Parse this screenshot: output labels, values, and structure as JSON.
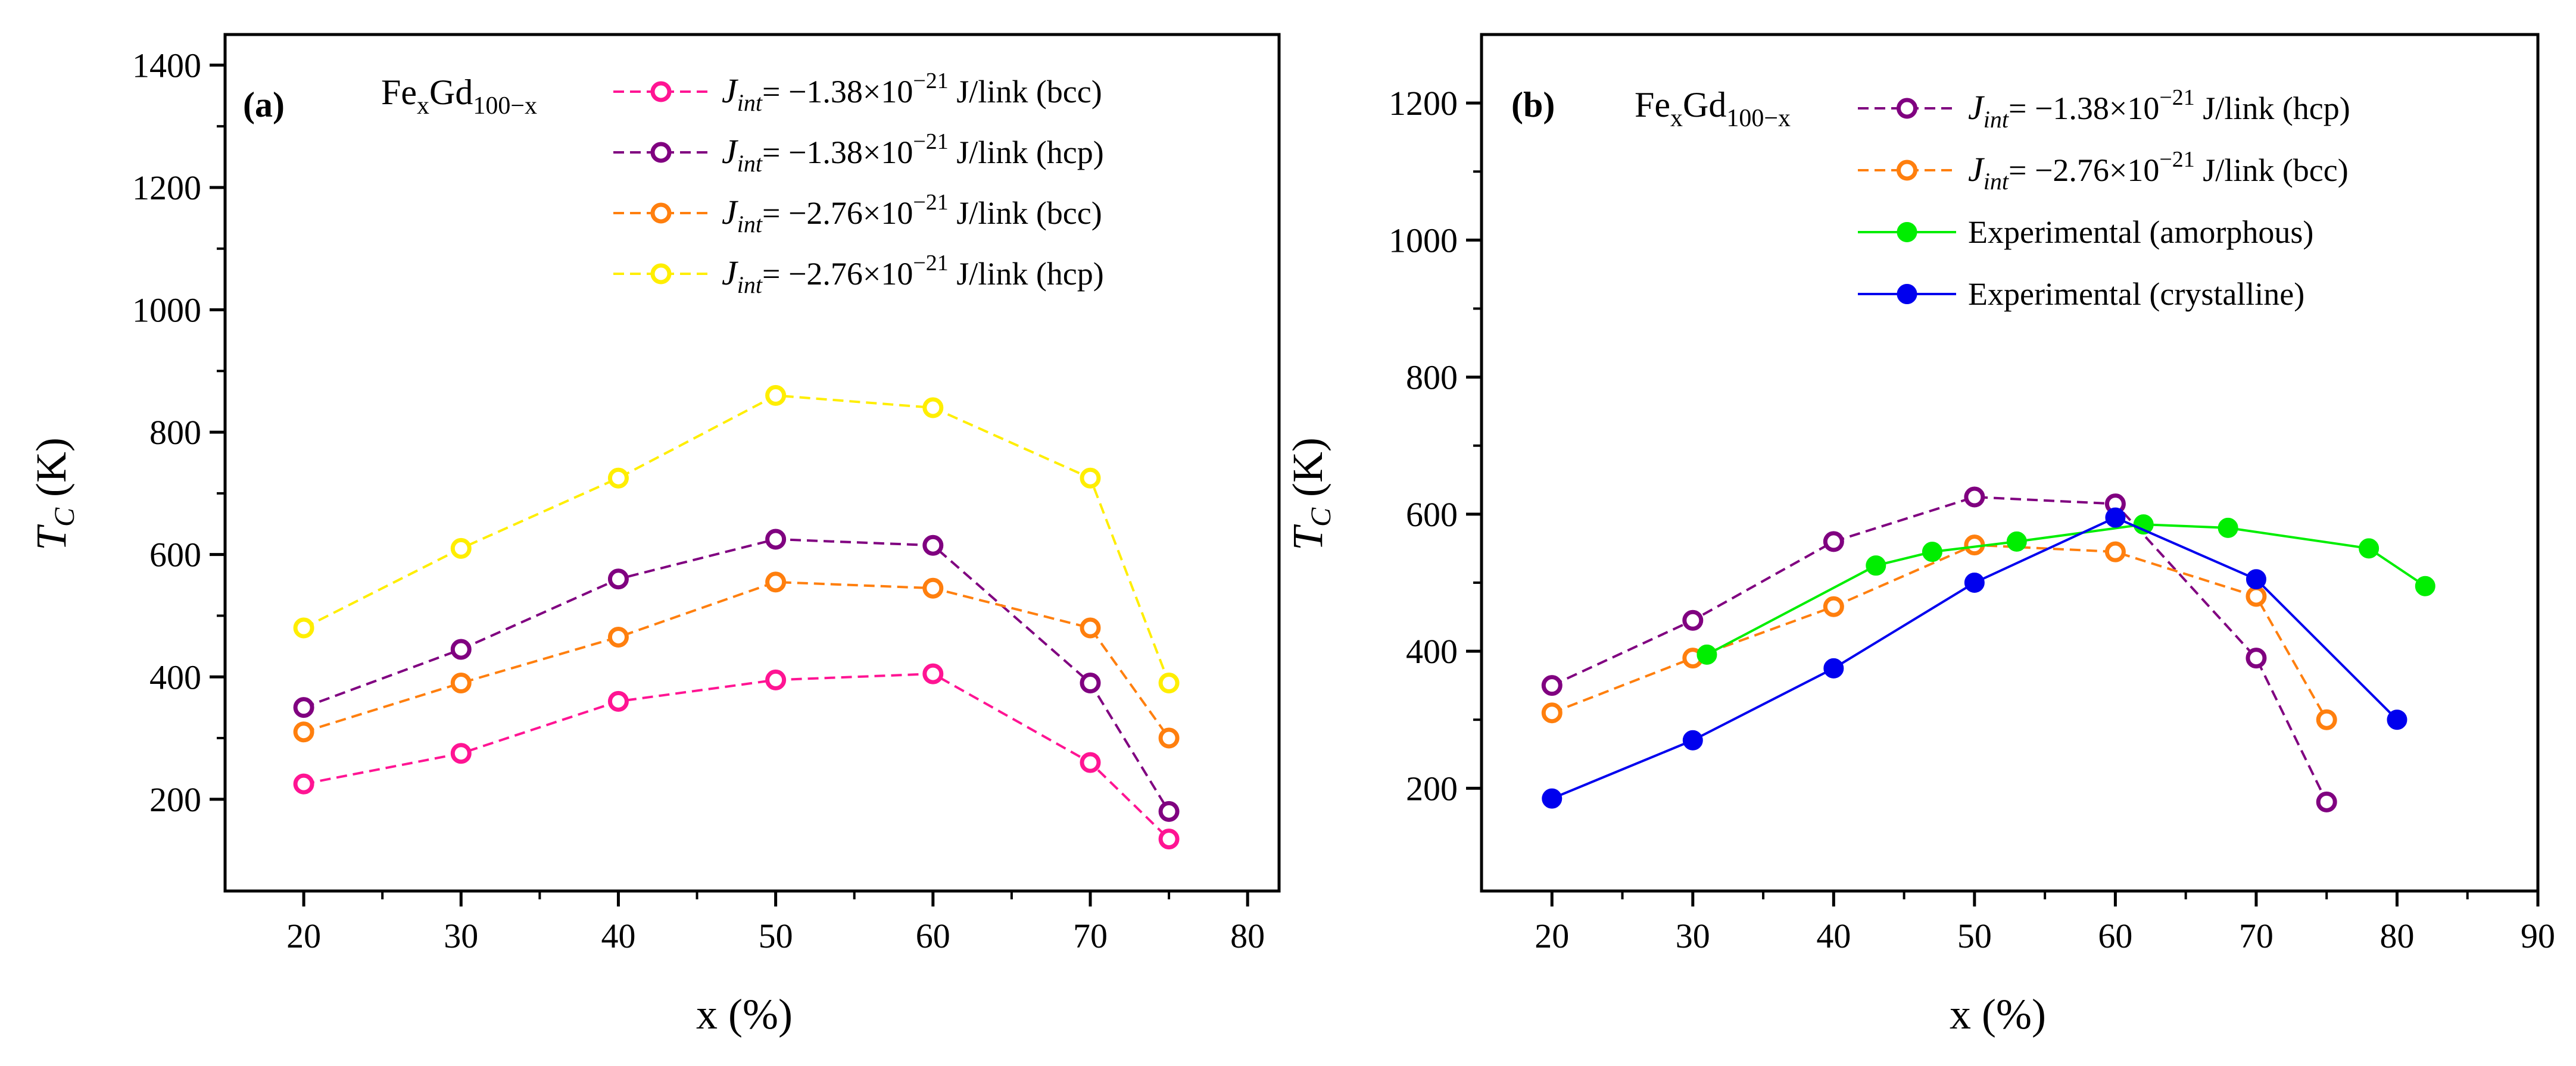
{
  "chart_data": [
    {
      "panel_label": "(a)",
      "type": "line",
      "alloy_label": {
        "base": "Fe",
        "sub1": "x",
        "mid": "Gd",
        "sub2": "100−x"
      },
      "xlabel": "x (%)",
      "ylabel": {
        "main": "T",
        "sub": "C",
        "unit": " (K)"
      },
      "xlim": [
        15,
        82
      ],
      "ylim": [
        50,
        1450
      ],
      "xticks": [
        20,
        30,
        40,
        50,
        60,
        70,
        80
      ],
      "xtick_labels": [
        "20",
        "30",
        "40",
        "50",
        "60",
        "70",
        "80"
      ],
      "yticks": [
        200,
        400,
        600,
        800,
        1000,
        1200,
        1400
      ],
      "ytick_labels": [
        "200",
        "400",
        "600",
        "800",
        "1000",
        "1200",
        "1400"
      ],
      "series": [
        {
          "name": {
            "pre": "J",
            "sub": "int",
            "mid": "= −1.38×10",
            "sup": "−21",
            "post": " J/link (bcc)"
          },
          "color": "#ff1493",
          "dashed": true,
          "filled": false,
          "x": [
            20,
            30,
            40,
            50,
            60,
            70,
            75
          ],
          "values": [
            225,
            275,
            360,
            395,
            405,
            260,
            135
          ]
        },
        {
          "name": {
            "pre": "J",
            "sub": "int",
            "mid": "= −1.38×10",
            "sup": "−21",
            "post": " J/link (hcp)"
          },
          "color": "#800080",
          "dashed": true,
          "filled": false,
          "x": [
            20,
            30,
            40,
            50,
            60,
            70,
            75
          ],
          "values": [
            350,
            445,
            560,
            625,
            615,
            390,
            180
          ]
        },
        {
          "name": {
            "pre": "J",
            "sub": "int",
            "mid": "= −2.76×10",
            "sup": "−21",
            "post": " J/link (bcc)"
          },
          "color": "#ff7f0e",
          "dashed": true,
          "filled": false,
          "x": [
            20,
            30,
            40,
            50,
            60,
            70,
            75
          ],
          "values": [
            310,
            390,
            465,
            555,
            545,
            480,
            300
          ]
        },
        {
          "name": {
            "pre": "J",
            "sub": "int",
            "mid": "= −2.76×10",
            "sup": "−21",
            "post": " J/link (hcp)"
          },
          "color": "#ffee00",
          "dashed": true,
          "filled": false,
          "x": [
            20,
            30,
            40,
            50,
            60,
            70,
            75
          ],
          "values": [
            480,
            610,
            725,
            860,
            840,
            725,
            390
          ]
        }
      ]
    },
    {
      "panel_label": "(b)",
      "type": "line",
      "alloy_label": {
        "base": "Fe",
        "sub1": "x",
        "mid": "Gd",
        "sub2": "100−x"
      },
      "xlabel": "x (%)",
      "ylabel": {
        "main": "T",
        "sub": "C",
        "unit": " (K)"
      },
      "xlim": [
        15,
        90
      ],
      "ylim": [
        50,
        1300
      ],
      "xticks": [
        20,
        30,
        40,
        50,
        60,
        70,
        80,
        90
      ],
      "xtick_labels": [
        "20",
        "30",
        "40",
        "50",
        "60",
        "70",
        "80",
        "90"
      ],
      "yticks": [
        200,
        400,
        600,
        800,
        1000,
        1200
      ],
      "ytick_labels": [
        "200",
        "400",
        "600",
        "800",
        "1000",
        "1200"
      ],
      "series": [
        {
          "name": {
            "pre": "J",
            "sub": "int",
            "mid": "= −1.38×10",
            "sup": "−21",
            "post": " J/link (hcp)"
          },
          "color": "#800080",
          "dashed": true,
          "filled": false,
          "x": [
            20,
            30,
            40,
            50,
            60,
            70,
            75
          ],
          "values": [
            350,
            445,
            560,
            625,
            615,
            390,
            180
          ]
        },
        {
          "name": {
            "pre": "J",
            "sub": "int",
            "mid": "= −2.76×10",
            "sup": "−21",
            "post": " J/link (bcc)"
          },
          "color": "#ff7f0e",
          "dashed": true,
          "filled": false,
          "x": [
            20,
            30,
            40,
            50,
            60,
            70,
            75
          ],
          "values": [
            310,
            390,
            465,
            555,
            545,
            480,
            300
          ]
        },
        {
          "name": {
            "plain": "Experimental (amorphous)"
          },
          "color": "#00ee00",
          "dashed": false,
          "filled": true,
          "x": [
            31,
            43,
            47,
            53,
            62,
            68,
            78,
            82
          ],
          "values": [
            395,
            525,
            545,
            560,
            585,
            580,
            550,
            495
          ]
        },
        {
          "name": {
            "plain": "Experimental (crystalline)"
          },
          "color": "#0000ee",
          "dashed": false,
          "filled": true,
          "x": [
            20,
            30,
            40,
            50,
            60,
            70,
            80
          ],
          "values": [
            185,
            270,
            375,
            500,
            595,
            505,
            300
          ]
        }
      ]
    }
  ]
}
